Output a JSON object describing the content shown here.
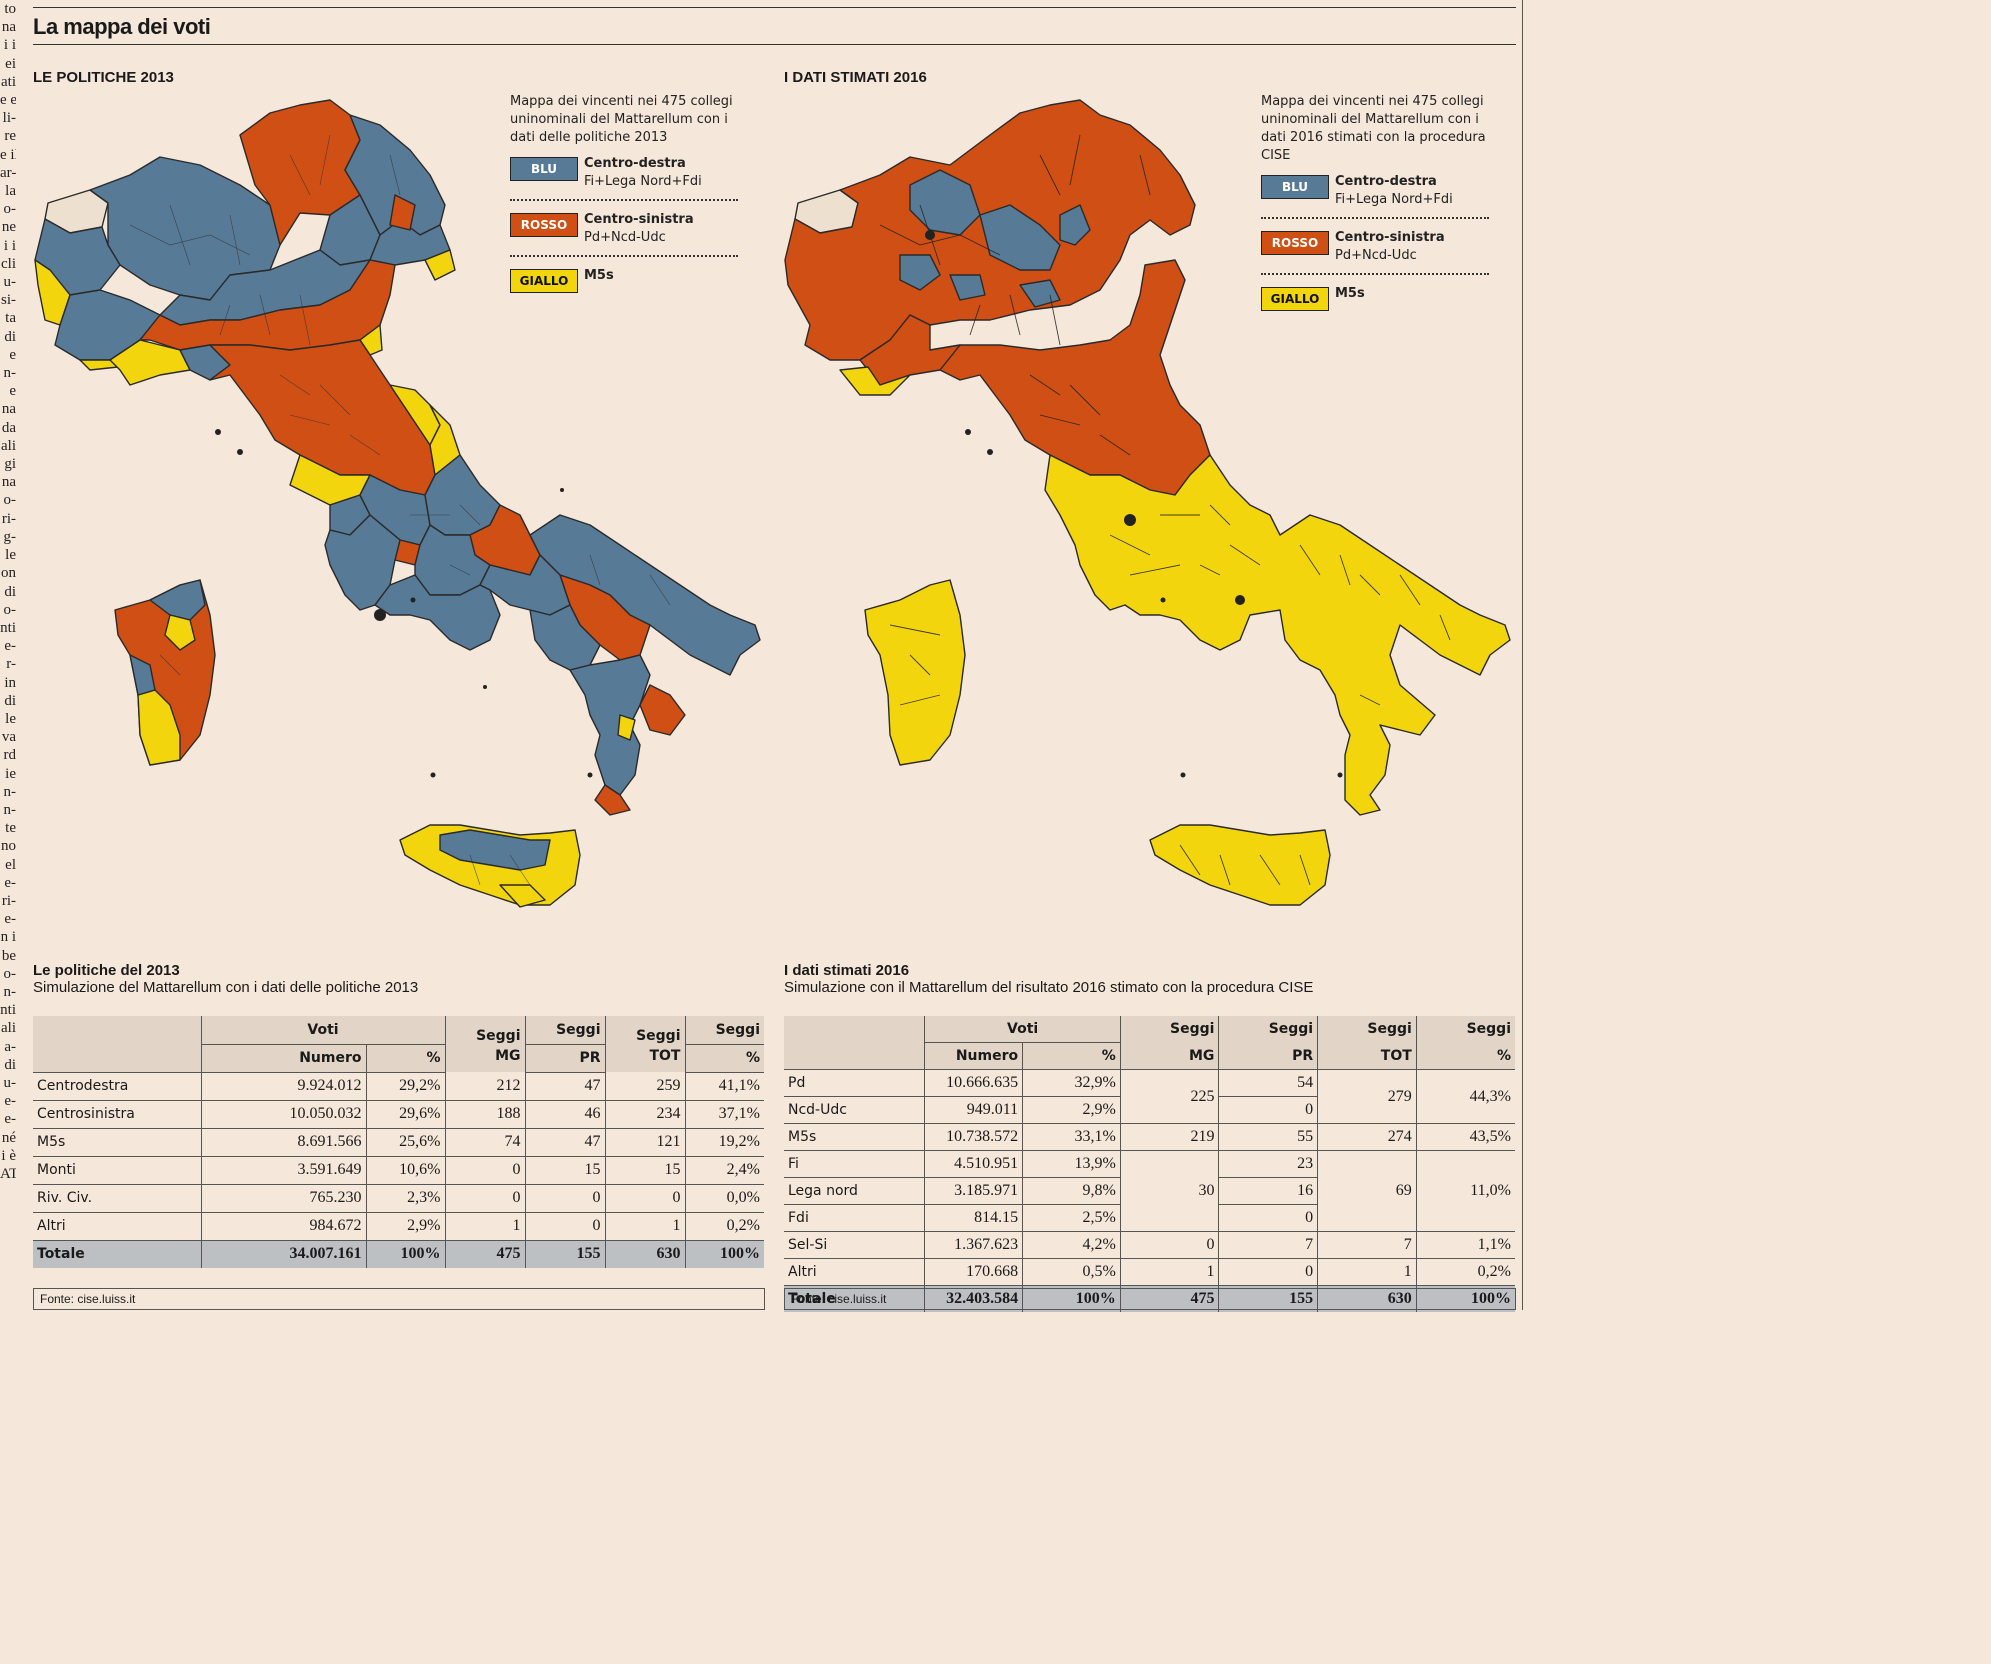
{
  "left_column_text": [
    "to",
    "na",
    "i i",
    "ei",
    "ati",
    "e e",
    "li-",
    "re",
    "e il",
    "ar-",
    "la",
    "o-",
    "ne",
    "i i",
    "cli",
    "u-",
    "si-",
    "ta",
    "di",
    "e",
    "n-",
    "e",
    "na",
    "da",
    "",
    "ali",
    "gi",
    "na",
    "o-",
    "ri-",
    "g-",
    "le",
    "on",
    "di",
    "o-",
    "nti",
    "e-",
    "r-",
    "in",
    "di",
    "le",
    "va",
    "rd",
    "ie",
    "n-",
    "n-",
    "te",
    "no",
    "el",
    "e-",
    "ri-",
    "e-",
    "n i",
    "be",
    "o-",
    "n-",
    "nti",
    "ali",
    "a-",
    "di",
    "u-",
    "e-",
    "e-",
    "né",
    "i è",
    "ATA"
  ],
  "title": "La mappa dei voti",
  "left_map": {
    "heading": "LE POLITICHE 2013",
    "description": "Mappa dei vincenti nei 475 collegi uninominali del Mattarellum con i dati delle politiche  2013"
  },
  "right_map": {
    "heading": "I DATI STIMATI 2016",
    "description": "Mappa dei vincenti nei 475 collegi uninominali del Mattarellum con i dati 2016  stimati con la procedura CISE"
  },
  "legend": [
    {
      "swatch": "BLU",
      "name": "Centro-destra",
      "sub": "Fi+Lega Nord+Fdi",
      "color": "#577a96"
    },
    {
      "swatch": "ROSSO",
      "name": "Centro-sinistra",
      "sub": "Pd+Ncd-Udc",
      "color": "#cf4f14"
    },
    {
      "swatch": "GIALLO",
      "name": "M5s",
      "sub": "",
      "color": "#f3d50e"
    }
  ],
  "table2013": {
    "title": "Le politiche del 2013",
    "subtitle": "Simulazione del Mattarellum con i dati delle politiche 2013",
    "h_voti": "Voti",
    "h_numero": "Numero",
    "h_pct": "%",
    "h_seggi_mg_a": "Seggi",
    "h_seggi_mg_b": "MG",
    "h_seggi_pr_a": "Seggi",
    "h_seggi_pr_b": "PR",
    "h_seggi_tot_a": "Seggi",
    "h_seggi_tot_b": "TOT",
    "h_seggi_pct_a": "Seggi",
    "h_seggi_pct_b": "%",
    "rows": [
      {
        "name": "Centrodestra",
        "numero": "9.924.012",
        "pct": "29,2%",
        "mg": "212",
        "pr": "47",
        "tot": "259",
        "spct": "41,1%"
      },
      {
        "name": "Centrosinistra",
        "numero": "10.050.032",
        "pct": "29,6%",
        "mg": "188",
        "pr": "46",
        "tot": "234",
        "spct": "37,1%"
      },
      {
        "name": "M5s",
        "numero": "8.691.566",
        "pct": "25,6%",
        "mg": "74",
        "pr": "47",
        "tot": "121",
        "spct": "19,2%"
      },
      {
        "name": "Monti",
        "numero": "3.591.649",
        "pct": "10,6%",
        "mg": "0",
        "pr": "15",
        "tot": "15",
        "spct": "2,4%"
      },
      {
        "name": "Riv. Civ.",
        "numero": "765.230",
        "pct": "2,3%",
        "mg": "0",
        "pr": "0",
        "tot": "0",
        "spct": "0,0%"
      },
      {
        "name": "Altri",
        "numero": "984.672",
        "pct": "2,9%",
        "mg": "1",
        "pr": "0",
        "tot": "1",
        "spct": "0,2%"
      }
    ],
    "total": {
      "name": "Totale",
      "numero": "34.007.161",
      "pct": "100%",
      "mg": "475",
      "pr": "155",
      "tot": "630",
      "spct": "100%"
    },
    "source": "Fonte: cise.luiss.it"
  },
  "table2016": {
    "title": "I dati stimati 2016",
    "subtitle": "Simulazione con il Mattarellum del risultato 2016 stimato con la procedura CISE",
    "h_voti": "Voti",
    "h_numero": "Numero",
    "h_pct": "%",
    "h_seggi": "Seggi",
    "h_mg": "MG",
    "h_pr": "PR",
    "h_tot": "TOT",
    "h_spct": "%",
    "rows": [
      {
        "name": "Pd",
        "numero": "10.666.635",
        "pct": "32,9%",
        "pr": "54"
      },
      {
        "name": "Ncd-Udc",
        "numero": "949.011",
        "pct": "2,9%",
        "pr": "0"
      },
      {
        "name": "M5s",
        "numero": "10.738.572",
        "pct": "33,1%",
        "mg": "219",
        "pr": "55",
        "tot": "274",
        "spct": "43,5%"
      },
      {
        "name": "Fi",
        "numero": "4.510.951",
        "pct": "13,9%",
        "pr": "23"
      },
      {
        "name": "Lega nord",
        "numero": "3.185.971",
        "pct": "9,8%",
        "pr": "16"
      },
      {
        "name": "Fdi",
        "numero": "814.15",
        "pct": "2,5%",
        "pr": "0"
      },
      {
        "name": "Sel-Si",
        "numero": "1.367.623",
        "pct": "4,2%",
        "mg": "0",
        "pr": "7",
        "tot": "7",
        "spct": "1,1%"
      },
      {
        "name": "Altri",
        "numero": "170.668",
        "pct": "0,5%",
        "mg": "1",
        "pr": "0",
        "tot": "1",
        "spct": "0,2%"
      }
    ],
    "group1": {
      "mg": "225",
      "tot": "279",
      "spct": "44,3%"
    },
    "group2": {
      "mg": "30",
      "tot": "69",
      "spct": "11,0%"
    },
    "total": {
      "name": "Totale",
      "numero": "32.403.584",
      "pct": "100%",
      "mg": "475",
      "pr": "155",
      "tot": "630",
      "spct": "100%"
    },
    "source": "Fonte: cise.luiss.it"
  }
}
